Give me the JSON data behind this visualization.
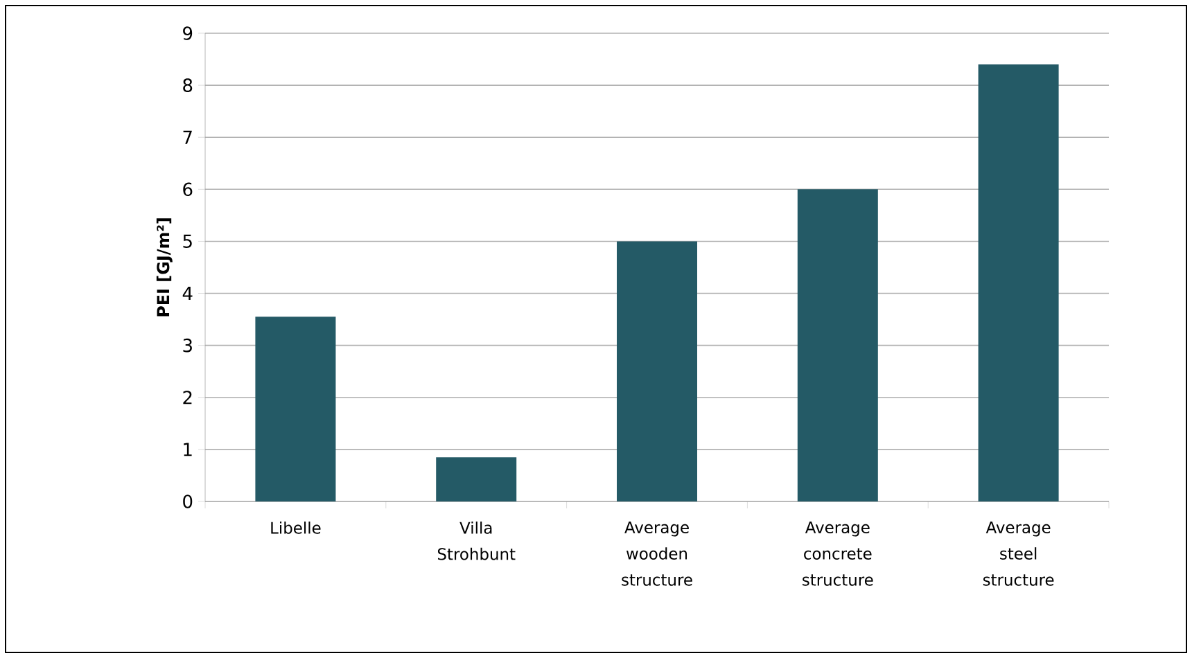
{
  "chart_data": {
    "type": "bar",
    "ylabel": "PEI [GJ/m²]",
    "categories": [
      "Libelle",
      "Villa Strohbunt",
      "Average wooden structure",
      "Average concrete structure",
      "Average steel structure"
    ],
    "values": [
      3.55,
      0.85,
      5.0,
      6.0,
      8.4
    ],
    "color": "#245a66",
    "ylim": [
      0,
      9
    ],
    "yticks": [
      0,
      1,
      2,
      3,
      4,
      5,
      6,
      7,
      8,
      9
    ],
    "grid": "y"
  }
}
